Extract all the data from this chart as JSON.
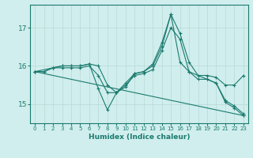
{
  "xlabel": "Humidex (Indice chaleur)",
  "ylabel": "",
  "xlim": [
    -0.5,
    23.5
  ],
  "ylim": [
    14.5,
    17.6
  ],
  "yticks": [
    15,
    16,
    17
  ],
  "xticks": [
    0,
    1,
    2,
    3,
    4,
    5,
    6,
    7,
    8,
    9,
    10,
    11,
    12,
    13,
    14,
    15,
    16,
    17,
    18,
    19,
    20,
    21,
    22,
    23
  ],
  "bg_color": "#d0eeed",
  "line_color": "#1a7a6e",
  "grid_color": "#b8d8d5",
  "lines": [
    {
      "x": [
        0,
        1,
        2,
        3,
        4,
        5,
        6,
        7,
        8,
        9,
        10,
        11,
        12,
        13,
        14,
        15,
        16,
        17,
        18,
        19,
        20,
        21,
        22,
        23
      ],
      "y": [
        15.85,
        15.85,
        15.95,
        15.95,
        15.95,
        15.95,
        16.0,
        15.75,
        15.3,
        15.3,
        15.55,
        15.8,
        15.85,
        16.0,
        16.5,
        17.35,
        16.85,
        16.1,
        15.75,
        15.75,
        15.7,
        15.5,
        15.5,
        15.75
      ]
    },
    {
      "x": [
        0,
        1,
        2,
        3,
        4,
        5,
        6,
        7,
        8,
        9,
        10,
        11,
        12,
        13,
        14,
        15,
        16,
        17,
        18,
        19,
        20,
        21,
        22,
        23
      ],
      "y": [
        15.85,
        15.85,
        15.95,
        16.0,
        16.0,
        16.0,
        16.05,
        16.0,
        15.5,
        15.3,
        15.5,
        15.75,
        15.8,
        15.9,
        16.4,
        17.0,
        16.7,
        15.85,
        15.65,
        15.65,
        15.55,
        15.1,
        14.95,
        14.75
      ]
    },
    {
      "x": [
        0,
        2,
        3,
        4,
        5,
        6,
        7,
        8,
        9,
        10,
        11,
        12,
        13,
        14,
        15,
        16,
        17,
        19,
        20,
        21,
        22,
        23
      ],
      "y": [
        15.85,
        15.95,
        16.0,
        16.0,
        16.0,
        16.05,
        15.4,
        14.85,
        15.3,
        15.45,
        15.8,
        15.85,
        16.05,
        16.6,
        17.35,
        16.1,
        15.85,
        15.65,
        15.55,
        15.05,
        14.9,
        14.7
      ]
    },
    {
      "x": [
        0,
        23
      ],
      "y": [
        15.85,
        14.7
      ]
    }
  ]
}
